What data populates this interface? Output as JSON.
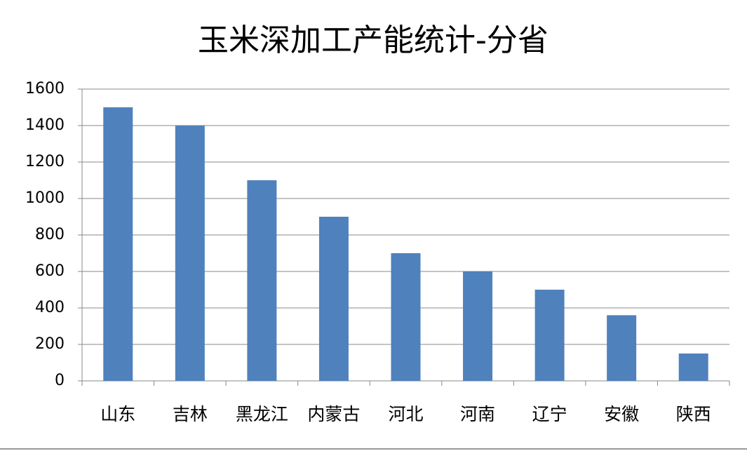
{
  "chart_data": {
    "type": "bar",
    "title": "玉米深加工产能统计-分省",
    "categories": [
      "山东",
      "吉林",
      "黑龙江",
      "内蒙古",
      "河北",
      "河南",
      "辽宁",
      "安徽",
      "陕西"
    ],
    "values": [
      1500,
      1400,
      1100,
      900,
      700,
      600,
      500,
      360,
      150
    ],
    "color": "#4f81bd",
    "ylim": [
      0,
      1600
    ],
    "yticks": [
      0,
      200,
      400,
      600,
      800,
      1000,
      1200,
      1400,
      1600
    ],
    "grid": true
  }
}
